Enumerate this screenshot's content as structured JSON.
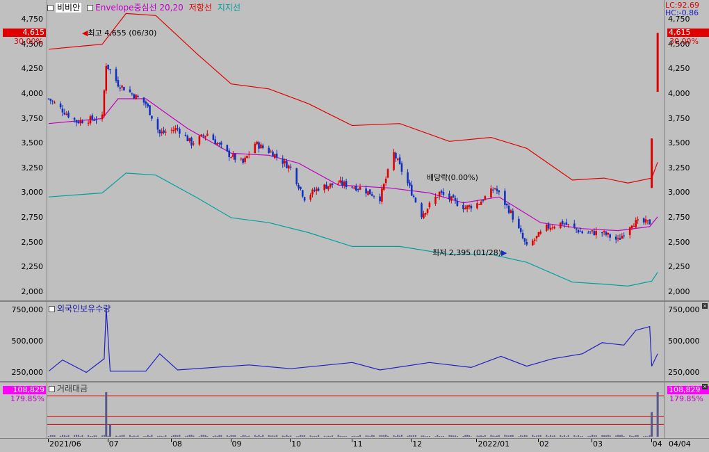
{
  "legend": {
    "stock": "비비안",
    "envelope": "Envelope중심선 20,20",
    "resistance": "저항선",
    "support": "지지선"
  },
  "lc_hc": {
    "lc": "LC:92.69",
    "hc": "HC:-0.86"
  },
  "price_tag": {
    "value": "4,615",
    "pct": "30.00%"
  },
  "annotations": {
    "high": "최고 4,655 (06/30)",
    "low": "최저 2,395 (01/28)",
    "dividend": "배당락(0.00%)"
  },
  "foreign_title": "외국인보유수량",
  "volume_title": "거래대금",
  "vol_tag": {
    "value": "108,829",
    "pct": "179.85%"
  },
  "x_labels": [
    "2021/06",
    "07",
    "08",
    "09",
    "10",
    "11",
    "12",
    "2022/01",
    "02",
    "03",
    "04"
  ],
  "right_date": "04/04",
  "colors": {
    "up": "#e00000",
    "down": "#1030c0",
    "envelope_mid": "#c000c0",
    "resistance": "#e00000",
    "support": "#00a0a0",
    "foreign": "#2020c0",
    "volume": "#5a5a8a"
  },
  "chart_data": [
    {
      "type": "candlestick",
      "title": "비비안",
      "y_ticks": [
        "4,750",
        "4,500",
        "4,250",
        "4,000",
        "3,750",
        "3,500",
        "3,250",
        "3,000",
        "2,750",
        "2,500",
        "2,250",
        "2,000"
      ],
      "ylim": [
        1950,
        4800
      ],
      "grid": false,
      "close_keypoints": [
        {
          "x": "2021/06/01",
          "v": 3950
        },
        {
          "x": "2021/06/15",
          "v": 3720
        },
        {
          "x": "2021/06/28",
          "v": 3760
        },
        {
          "x": "2021/06/30",
          "v": 4300
        },
        {
          "x": "2021/07/06",
          "v": 4100
        },
        {
          "x": "2021/07/20",
          "v": 3900
        },
        {
          "x": "2021/07/27",
          "v": 3600
        },
        {
          "x": "2021/08/05",
          "v": 3650
        },
        {
          "x": "2021/08/12",
          "v": 3500
        },
        {
          "x": "2021/08/20",
          "v": 3600
        },
        {
          "x": "2021/08/30",
          "v": 3400
        },
        {
          "x": "2021/09/07",
          "v": 3300
        },
        {
          "x": "2021/09/13",
          "v": 3500
        },
        {
          "x": "2021/09/22",
          "v": 3400
        },
        {
          "x": "2021/10/01",
          "v": 3250
        },
        {
          "x": "2021/10/08",
          "v": 2950
        },
        {
          "x": "2021/10/15",
          "v": 3050
        },
        {
          "x": "2021/10/25",
          "v": 3100
        },
        {
          "x": "2021/11/05",
          "v": 3050
        },
        {
          "x": "2021/11/15",
          "v": 2950
        },
        {
          "x": "2021/11/22",
          "v": 3400
        },
        {
          "x": "2021/11/30",
          "v": 3050
        },
        {
          "x": "2021/12/06",
          "v": 2780
        },
        {
          "x": "2021/12/15",
          "v": 3000
        },
        {
          "x": "2021/12/28",
          "v": 2850
        },
        {
          "x": "2022/01/04",
          "v": 2900
        },
        {
          "x": "2022/01/12",
          "v": 3050
        },
        {
          "x": "2022/01/20",
          "v": 2800
        },
        {
          "x": "2022/01/28",
          "v": 2450
        },
        {
          "x": "2022/02/07",
          "v": 2650
        },
        {
          "x": "2022/02/15",
          "v": 2700
        },
        {
          "x": "2022/02/25",
          "v": 2600
        },
        {
          "x": "2022/03/07",
          "v": 2600
        },
        {
          "x": "2022/03/15",
          "v": 2520
        },
        {
          "x": "2022/03/22",
          "v": 2700
        },
        {
          "x": "2022/03/31",
          "v": 2700
        },
        {
          "x": "2022/04/01",
          "v": 3300
        },
        {
          "x": "2022/04/04",
          "v": 4615
        }
      ],
      "envelope_mid": [
        {
          "x": "2021/06/01",
          "v": 3700
        },
        {
          "x": "2021/06/28",
          "v": 3750
        },
        {
          "x": "2021/07/06",
          "v": 3950
        },
        {
          "x": "2021/07/20",
          "v": 3950
        },
        {
          "x": "2021/08/10",
          "v": 3650
        },
        {
          "x": "2021/09/01",
          "v": 3400
        },
        {
          "x": "2021/09/20",
          "v": 3380
        },
        {
          "x": "2021/10/05",
          "v": 3300
        },
        {
          "x": "2021/10/25",
          "v": 3080
        },
        {
          "x": "2021/11/20",
          "v": 3050
        },
        {
          "x": "2021/12/10",
          "v": 3000
        },
        {
          "x": "2021/12/27",
          "v": 2900
        },
        {
          "x": "2022/01/14",
          "v": 2960
        },
        {
          "x": "2022/02/04",
          "v": 2700
        },
        {
          "x": "2022/02/25",
          "v": 2640
        },
        {
          "x": "2022/03/15",
          "v": 2620
        },
        {
          "x": "2022/03/31",
          "v": 2660
        },
        {
          "x": "2022/04/04",
          "v": 2760
        }
      ],
      "resistance": [
        {
          "x": "2021/06/01",
          "v": 4450
        },
        {
          "x": "2021/06/28",
          "v": 4500
        },
        {
          "x": "2021/07/10",
          "v": 4810
        },
        {
          "x": "2021/07/25",
          "v": 4790
        },
        {
          "x": "2021/08/15",
          "v": 4400
        },
        {
          "x": "2021/09/01",
          "v": 4100
        },
        {
          "x": "2021/09/20",
          "v": 4050
        },
        {
          "x": "2021/10/10",
          "v": 3900
        },
        {
          "x": "2021/11/01",
          "v": 3680
        },
        {
          "x": "2021/11/25",
          "v": 3700
        },
        {
          "x": "2021/12/20",
          "v": 3520
        },
        {
          "x": "2022/01/10",
          "v": 3560
        },
        {
          "x": "2022/01/28",
          "v": 3450
        },
        {
          "x": "2022/02/20",
          "v": 3130
        },
        {
          "x": "2022/03/08",
          "v": 3150
        },
        {
          "x": "2022/03/20",
          "v": 3100
        },
        {
          "x": "2022/04/01",
          "v": 3150
        },
        {
          "x": "2022/04/04",
          "v": 3310
        }
      ],
      "support": [
        {
          "x": "2021/06/01",
          "v": 2960
        },
        {
          "x": "2021/06/28",
          "v": 3000
        },
        {
          "x": "2021/07/10",
          "v": 3200
        },
        {
          "x": "2021/07/25",
          "v": 3180
        },
        {
          "x": "2021/08/15",
          "v": 2950
        },
        {
          "x": "2021/09/01",
          "v": 2750
        },
        {
          "x": "2021/09/20",
          "v": 2700
        },
        {
          "x": "2021/10/10",
          "v": 2600
        },
        {
          "x": "2021/11/01",
          "v": 2460
        },
        {
          "x": "2021/11/25",
          "v": 2460
        },
        {
          "x": "2021/12/20",
          "v": 2380
        },
        {
          "x": "2022/01/10",
          "v": 2380
        },
        {
          "x": "2022/01/28",
          "v": 2300
        },
        {
          "x": "2022/02/20",
          "v": 2100
        },
        {
          "x": "2022/03/08",
          "v": 2080
        },
        {
          "x": "2022/03/20",
          "v": 2060
        },
        {
          "x": "2022/04/01",
          "v": 2110
        },
        {
          "x": "2022/04/04",
          "v": 2200
        }
      ]
    },
    {
      "type": "line",
      "title": "외국인보유수량",
      "y_ticks": [
        "750,000",
        "500,000",
        "250,000"
      ],
      "ylim": [
        150000,
        800000
      ],
      "keypoints": [
        {
          "x": "2021/06/01",
          "v": 260000
        },
        {
          "x": "2021/06/08",
          "v": 350000
        },
        {
          "x": "2021/06/20",
          "v": 250000
        },
        {
          "x": "2021/06/29",
          "v": 360000
        },
        {
          "x": "2021/06/30",
          "v": 770000
        },
        {
          "x": "2021/07/02",
          "v": 260000
        },
        {
          "x": "2021/07/20",
          "v": 260000
        },
        {
          "x": "2021/07/27",
          "v": 400000
        },
        {
          "x": "2021/08/05",
          "v": 270000
        },
        {
          "x": "2021/09/10",
          "v": 310000
        },
        {
          "x": "2021/10/01",
          "v": 280000
        },
        {
          "x": "2021/11/01",
          "v": 330000
        },
        {
          "x": "2021/11/15",
          "v": 270000
        },
        {
          "x": "2021/12/10",
          "v": 330000
        },
        {
          "x": "2021/12/31",
          "v": 290000
        },
        {
          "x": "2022/01/15",
          "v": 380000
        },
        {
          "x": "2022/01/28",
          "v": 300000
        },
        {
          "x": "2022/02/10",
          "v": 360000
        },
        {
          "x": "2022/02/25",
          "v": 400000
        },
        {
          "x": "2022/03/07",
          "v": 490000
        },
        {
          "x": "2022/03/18",
          "v": 470000
        },
        {
          "x": "2022/03/24",
          "v": 590000
        },
        {
          "x": "2022/03/31",
          "v": 620000
        },
        {
          "x": "2022/04/01",
          "v": 300000
        },
        {
          "x": "2022/04/04",
          "v": 400000
        }
      ]
    },
    {
      "type": "bar",
      "title": "거래대금",
      "value_last": 108829,
      "spikes": [
        {
          "x": "2021/06/30",
          "v": 108829
        },
        {
          "x": "2021/07/02",
          "v": 30000
        },
        {
          "x": "2022/04/01",
          "v": 60000
        },
        {
          "x": "2022/04/04",
          "v": 108829
        }
      ],
      "ref_lines": [
        100000,
        50000,
        30000
      ]
    }
  ]
}
